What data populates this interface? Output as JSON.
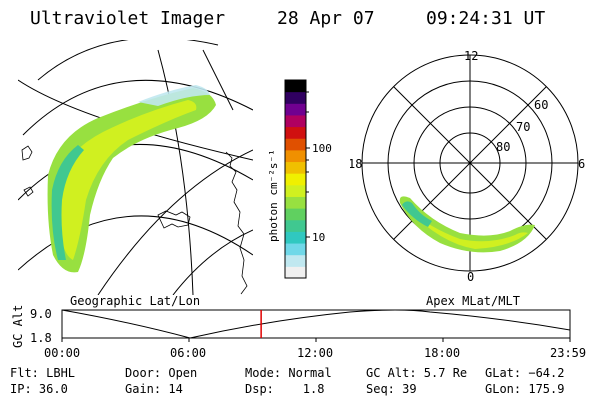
{
  "header": {
    "title": "Ultraviolet Imager",
    "date": "28 Apr 07",
    "time": "09:24:31 UT"
  },
  "geo_panel": {
    "label": "Geographic Lat/Lon"
  },
  "polar_panel": {
    "label": "Apex MLat/MLT",
    "mlt_labels": {
      "top": "12",
      "left": "18",
      "right": "6",
      "bottom": "0"
    },
    "lat_labels": [
      "60",
      "70",
      "80"
    ]
  },
  "colorbar": {
    "unit_label": "photon cm⁻²s⁻¹",
    "tick_100": "100",
    "tick_10": "10",
    "colors": [
      "#f0f0f0",
      "#c0e8f0",
      "#70d8e8",
      "#30c8c0",
      "#40c890",
      "#60d060",
      "#98e040",
      "#d0f020",
      "#f0f000",
      "#f0c000",
      "#f09000",
      "#e05000",
      "#d01010",
      "#b00060",
      "#700090",
      "#300060",
      "#000000"
    ]
  },
  "altitude_plot": {
    "ylabel": "GC Alt",
    "y_ticks": [
      "9.0",
      "1.8"
    ],
    "x_ticks": [
      "00:00",
      "06:00",
      "12:00",
      "18:00",
      "23:59"
    ],
    "current_time_fraction": 0.392
  },
  "info": {
    "flt": "Flt: LBHL",
    "door": "Door: Open",
    "mode": "Mode: Normal",
    "gc_alt": "GC Alt: 5.7 Re",
    "glat": "GLat: −64.2",
    "ip": "IP: 36.0",
    "gain": "Gain: 14",
    "dsp": "Dsp:    1.8",
    "seq": "Seq: 39",
    "glon": "GLon: 175.9"
  }
}
